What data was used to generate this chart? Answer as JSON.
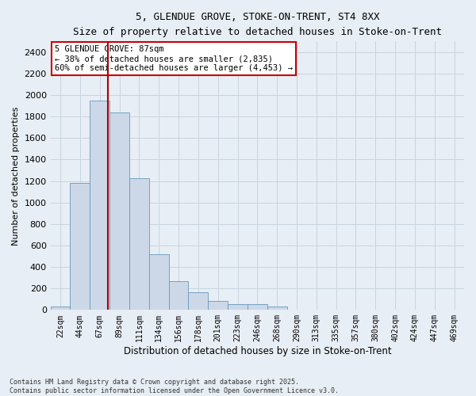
{
  "title1": "5, GLENDUE GROVE, STOKE-ON-TRENT, ST4 8XX",
  "title2": "Size of property relative to detached houses in Stoke-on-Trent",
  "xlabel": "Distribution of detached houses by size in Stoke-on-Trent",
  "ylabel": "Number of detached properties",
  "categories": [
    "22sqm",
    "44sqm",
    "67sqm",
    "89sqm",
    "111sqm",
    "134sqm",
    "156sqm",
    "178sqm",
    "201sqm",
    "223sqm",
    "246sqm",
    "268sqm",
    "290sqm",
    "313sqm",
    "335sqm",
    "357sqm",
    "380sqm",
    "402sqm",
    "424sqm",
    "447sqm",
    "469sqm"
  ],
  "values": [
    30,
    1180,
    1950,
    1840,
    1230,
    520,
    270,
    165,
    80,
    55,
    55,
    30,
    5,
    5,
    5,
    5,
    5,
    5,
    5,
    5,
    5
  ],
  "bar_color": "#ccd8e8",
  "bar_edge_color": "#6699bb",
  "vline_position": 2.425,
  "vline_color": "#aa0000",
  "annotation_text": "5 GLENDUE GROVE: 87sqm\n← 38% of detached houses are smaller (2,835)\n60% of semi-detached houses are larger (4,453) →",
  "annotation_box_facecolor": "#ffffff",
  "annotation_box_edgecolor": "#cc0000",
  "ylim": [
    0,
    2500
  ],
  "yticks": [
    0,
    200,
    400,
    600,
    800,
    1000,
    1200,
    1400,
    1600,
    1800,
    2000,
    2200,
    2400
  ],
  "grid_color": "#c8d4de",
  "background_color": "#e8eef5",
  "footnote": "Contains HM Land Registry data © Crown copyright and database right 2025.\nContains public sector information licensed under the Open Government Licence v3.0."
}
